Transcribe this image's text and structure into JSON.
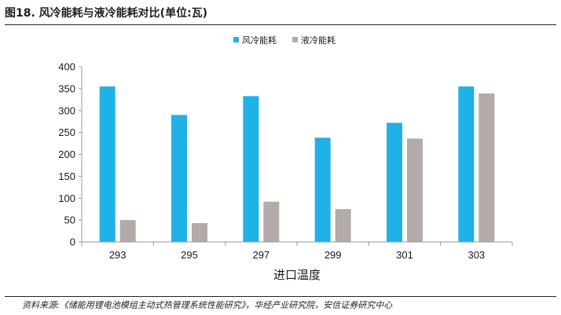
{
  "figure": {
    "title": "图18. 风冷能耗与液冷能耗对比(单位:瓦)",
    "source": "资料来源:《储能用锂电池模组主动式热管理系统性能研究》，华经产业研究院，安信证券研究中心"
  },
  "chart_data": {
    "type": "bar",
    "categories": [
      "293",
      "295",
      "297",
      "299",
      "301",
      "303"
    ],
    "series": [
      {
        "name": "风冷能耗",
        "color": "#1FB2E6",
        "values": [
          355,
          290,
          333,
          238,
          272,
          355
        ]
      },
      {
        "name": "液冷能耗",
        "color": "#B3ABA8",
        "values": [
          50,
          43,
          92,
          75,
          236,
          339
        ]
      }
    ],
    "xlabel": "进口温度",
    "ylabel": "",
    "ylim": [
      0,
      400
    ],
    "yticks": [
      "0",
      "50",
      "100",
      "150",
      "200",
      "250",
      "300",
      "350",
      "400"
    ],
    "grid": false,
    "legend": "top-center"
  }
}
